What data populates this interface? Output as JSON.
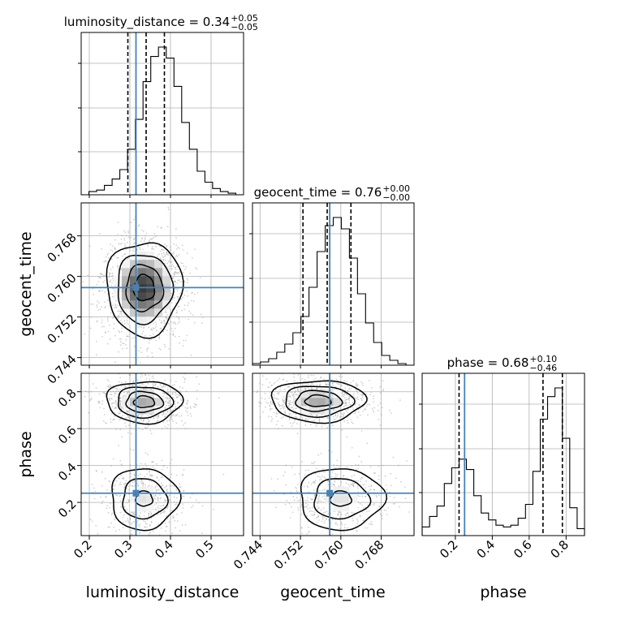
{
  "chart_data": {
    "type": "corner",
    "parameters": [
      "luminosity_distance",
      "geocent_time",
      "phase"
    ],
    "truths": {
      "luminosity_distance": 0.315,
      "geocent_time": 0.7578,
      "phase": 0.25
    },
    "truth_color": "#4682b4",
    "diagonal": [
      {
        "param": "luminosity_distance",
        "title_prefix": "luminosity_distance = 0.34",
        "title_sup": "+0.05",
        "title_sub": "−0.05",
        "range": [
          0.18,
          0.58
        ],
        "quantiles": [
          0.295,
          0.34,
          0.385
        ],
        "hist": [
          0.0,
          0.02,
          0.03,
          0.06,
          0.1,
          0.16,
          0.29,
          0.48,
          0.72,
          0.88,
          0.94,
          0.87,
          0.69,
          0.46,
          0.29,
          0.15,
          0.08,
          0.04,
          0.02,
          0.01,
          0.0
        ]
      },
      {
        "param": "geocent_time",
        "title_prefix": "geocent_time = 0.76",
        "title_sup": "+0.00",
        "title_sub": "−0.00",
        "range": [
          0.7425,
          0.7745
        ],
        "quantiles": [
          0.7525,
          0.7573,
          0.762
        ],
        "hist": [
          0.01,
          0.02,
          0.04,
          0.08,
          0.13,
          0.2,
          0.3,
          0.48,
          0.7,
          0.86,
          0.91,
          0.84,
          0.66,
          0.44,
          0.26,
          0.14,
          0.06,
          0.03,
          0.01,
          0.0
        ]
      },
      {
        "param": "phase",
        "title_prefix": "phase = 0.68",
        "title_sup": "+0.10",
        "title_sub": "−0.46",
        "range": [
          0.0,
          0.9
        ],
        "quantiles": [
          0.22,
          0.675,
          0.78
        ],
        "hist": [
          0.05,
          0.11,
          0.17,
          0.3,
          0.39,
          0.44,
          0.38,
          0.23,
          0.13,
          0.09,
          0.06,
          0.05,
          0.06,
          0.1,
          0.18,
          0.37,
          0.67,
          0.8,
          0.85,
          0.56,
          0.16,
          0.04
        ]
      }
    ],
    "panels_2d": [
      {
        "x": "luminosity_distance",
        "y": "geocent_time",
        "center": [
          0.335,
          0.7577
        ],
        "spread": [
          0.045,
          0.0045
        ]
      },
      {
        "x": "luminosity_distance",
        "y": "phase",
        "modes": [
          {
            "center": [
              0.335,
              0.745
            ],
            "spread": [
              0.045,
              0.055
            ],
            "weight": 0.6
          },
          {
            "center": [
              0.335,
              0.22
            ],
            "spread": [
              0.045,
              0.09
            ],
            "weight": 0.4
          }
        ]
      },
      {
        "x": "geocent_time",
        "y": "phase",
        "modes": [
          {
            "center": [
              0.7555,
              0.75
            ],
            "spread": [
              0.0045,
              0.055
            ],
            "weight": 0.6
          },
          {
            "center": [
              0.76,
              0.22
            ],
            "spread": [
              0.0045,
              0.09
            ],
            "weight": 0.4
          }
        ]
      }
    ],
    "axes": {
      "luminosity_distance": {
        "label": "luminosity_distance",
        "ticks": [
          "0.2",
          "0.3",
          "0.4",
          "0.5"
        ]
      },
      "geocent_time": {
        "label": "geocent_time",
        "ticks": [
          "0.744",
          "0.752",
          "0.760",
          "0.768"
        ]
      },
      "phase": {
        "label": "phase",
        "ticks_x": [
          "0.2",
          "0.4",
          "0.6",
          "0.8"
        ],
        "ticks_y": [
          "0.2",
          "0.4",
          "0.6",
          "0.8"
        ]
      }
    }
  }
}
